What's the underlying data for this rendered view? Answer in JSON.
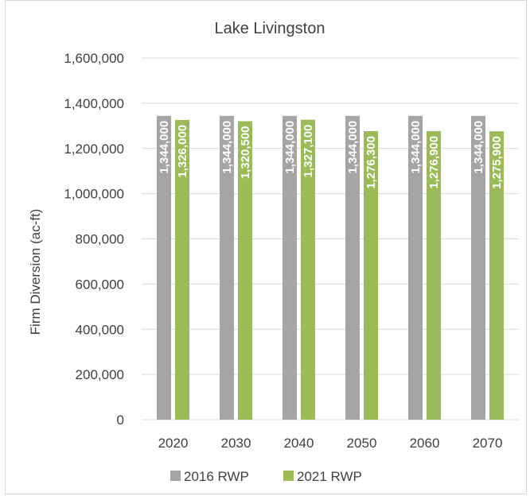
{
  "chart_data": {
    "type": "bar",
    "title": "Lake Livingston",
    "xlabel": "",
    "ylabel": "Firm Diversion (ac-ft)",
    "categories": [
      "2020",
      "2030",
      "2040",
      "2050",
      "2060",
      "2070"
    ],
    "series": [
      {
        "name": "2016 RWP",
        "color": "#a5a5a5",
        "values": [
          1344000,
          1344000,
          1344000,
          1344000,
          1344000,
          1344000
        ],
        "labels": [
          "1,344,000",
          "1,344,000",
          "1,344,000",
          "1,344,000",
          "1,344,000",
          "1,344,000"
        ]
      },
      {
        "name": "2021 RWP",
        "color": "#9bbb59",
        "values": [
          1326000,
          1320500,
          1327100,
          1276300,
          1276900,
          1275900
        ],
        "labels": [
          "1,326,000",
          "1,320,500",
          "1,327,100",
          "1,276,300",
          "1,276,900",
          "1,275,900"
        ]
      }
    ],
    "ylim": [
      0,
      1600000
    ],
    "yticks": [
      0,
      200000,
      400000,
      600000,
      800000,
      1000000,
      1200000,
      1400000,
      1600000
    ],
    "ytick_labels": [
      "0",
      "200,000",
      "400,000",
      "600,000",
      "800,000",
      "1,000,000",
      "1,200,000",
      "1,400,000",
      "1,600,000"
    ],
    "grid": true,
    "legend": "bottom",
    "gridline_color": "#d9d9d9"
  }
}
